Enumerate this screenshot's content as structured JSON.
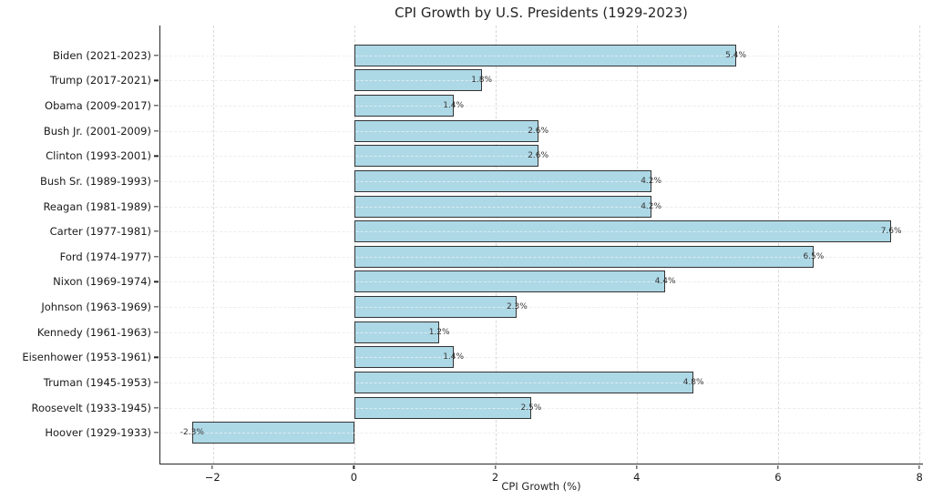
{
  "title": "CPI Growth by U.S. Presidents (1929-2023)",
  "chart_data": {
    "type": "bar",
    "orientation": "horizontal",
    "title": "CPI Growth by U.S. Presidents (1929-2023)",
    "xlabel": "CPI Growth (%)",
    "ylabel": "",
    "categories": [
      "Biden (2021-2023)",
      "Trump (2017-2021)",
      "Obama (2009-2017)",
      "Bush Jr. (2001-2009)",
      "Clinton (1993-2001)",
      "Bush Sr. (1989-1993)",
      "Reagan (1981-1989)",
      "Carter (1977-1981)",
      "Ford (1974-1977)",
      "Nixon (1969-1974)",
      "Johnson (1963-1969)",
      "Kennedy (1961-1963)",
      "Eisenhower (1953-1961)",
      "Truman (1945-1953)",
      "Roosevelt (1933-1945)",
      "Hoover (1929-1933)"
    ],
    "values": [
      5.4,
      1.8,
      1.4,
      2.6,
      2.6,
      4.2,
      4.2,
      7.6,
      6.5,
      4.4,
      2.3,
      1.2,
      1.4,
      4.8,
      2.5,
      -2.3
    ],
    "value_labels": [
      "5.4%",
      "1.8%",
      "1.4%",
      "2.6%",
      "2.6%",
      "4.2%",
      "4.2%",
      "7.6%",
      "6.5%",
      "4.4%",
      "2.3%",
      "1.2%",
      "1.4%",
      "4.8%",
      "2.5%",
      "-2.3%"
    ],
    "xticks": [
      -2,
      0,
      2,
      4,
      6,
      8
    ],
    "xtick_labels": [
      "−2",
      "0",
      "2",
      "4",
      "6",
      "8"
    ],
    "xlim": [
      -2.75,
      8.05
    ],
    "grid": true,
    "grid_style": "dashed",
    "legend": false,
    "bar_color": "#ADD8E6",
    "bar_edge_color": "#333333",
    "spine_color": "#262626",
    "grid_color": "#d9d9d9",
    "background_color": "#ffffff"
  }
}
